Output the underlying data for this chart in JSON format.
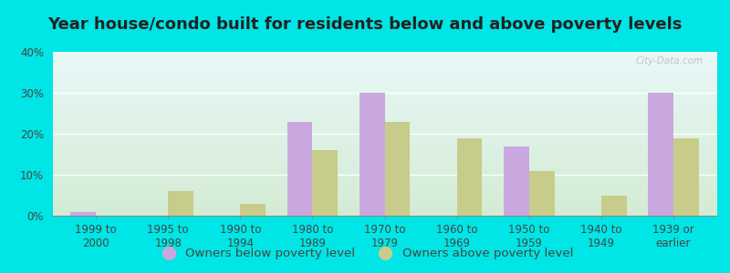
{
  "title": "Year house/condo built for residents below and above poverty levels",
  "categories": [
    "1999 to\n2000",
    "1995 to\n1998",
    "1990 to\n1994",
    "1980 to\n1989",
    "1970 to\n1979",
    "1960 to\n1969",
    "1950 to\n1959",
    "1940 to\n1949",
    "1939 or\nearlier"
  ],
  "below_poverty": [
    1.0,
    0.0,
    0.0,
    23.0,
    30.0,
    0.0,
    17.0,
    0.0,
    30.0
  ],
  "above_poverty": [
    0.0,
    6.0,
    3.0,
    16.0,
    23.0,
    19.0,
    11.0,
    5.0,
    19.0
  ],
  "below_color": "#c9a8e0",
  "above_color": "#c8cc8a",
  "grad_top": "#e8f8f8",
  "grad_mid": "#ddf0e8",
  "grad_bot": "#d4ecd4",
  "outer_bg": "#00e5e5",
  "ylim": [
    0,
    40
  ],
  "yticks": [
    0,
    10,
    20,
    30,
    40
  ],
  "ytick_labels": [
    "0%",
    "10%",
    "20%",
    "30%",
    "40%"
  ],
  "legend_below": "Owners below poverty level",
  "legend_above": "Owners above poverty level",
  "bar_width": 0.35,
  "title_fontsize": 13,
  "tick_fontsize": 8.5,
  "legend_fontsize": 9.5,
  "watermark": "City-Data.com"
}
